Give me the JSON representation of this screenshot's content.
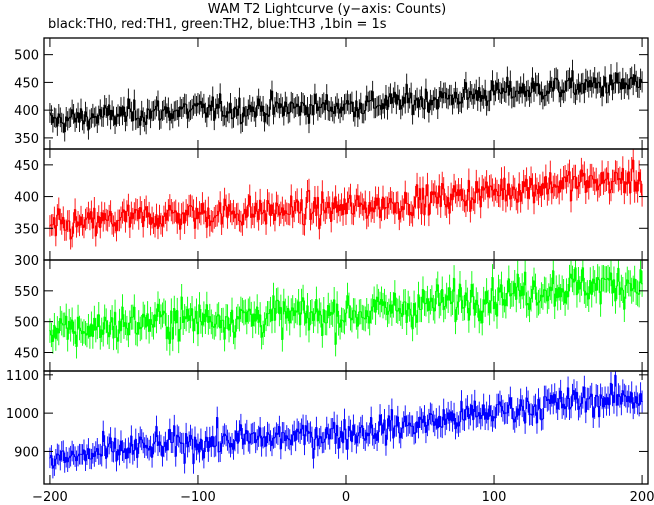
{
  "chart_data": {
    "title": "WAM T2 Lightcurve (y−axis: Counts)",
    "subtitle": "black:TH0, red:TH1, green:TH2, blue:TH3 ,1bin = 1s",
    "type": "line",
    "x": {
      "range": [
        -204,
        204
      ],
      "ticks": [
        -200,
        -100,
        0,
        100,
        200
      ],
      "tick_labels": [
        "−200",
        "−100",
        "0",
        "100",
        "200"
      ]
    },
    "panels": [
      {
        "id": "TH0",
        "color": "#000000",
        "ylim": [
          330,
          530
        ],
        "yticks": [
          350,
          400,
          450,
          500
        ],
        "start": 380,
        "end": 445,
        "noise": 16
      },
      {
        "id": "TH1",
        "color": "#ff0000",
        "ylim": [
          300,
          475
        ],
        "yticks": [
          300,
          350,
          400,
          450
        ],
        "start": 350,
        "end": 425,
        "noise": 17
      },
      {
        "id": "TH2",
        "color": "#00ff00",
        "ylim": [
          420,
          600
        ],
        "yticks": [
          450,
          500,
          550
        ],
        "start": 480,
        "end": 560,
        "noise": 22
      },
      {
        "id": "TH3",
        "color": "#0000ff",
        "ylim": [
          815,
          1110
        ],
        "yticks": [
          900,
          1000,
          1100
        ],
        "start": 875,
        "end": 1040,
        "noise": 28
      }
    ]
  }
}
